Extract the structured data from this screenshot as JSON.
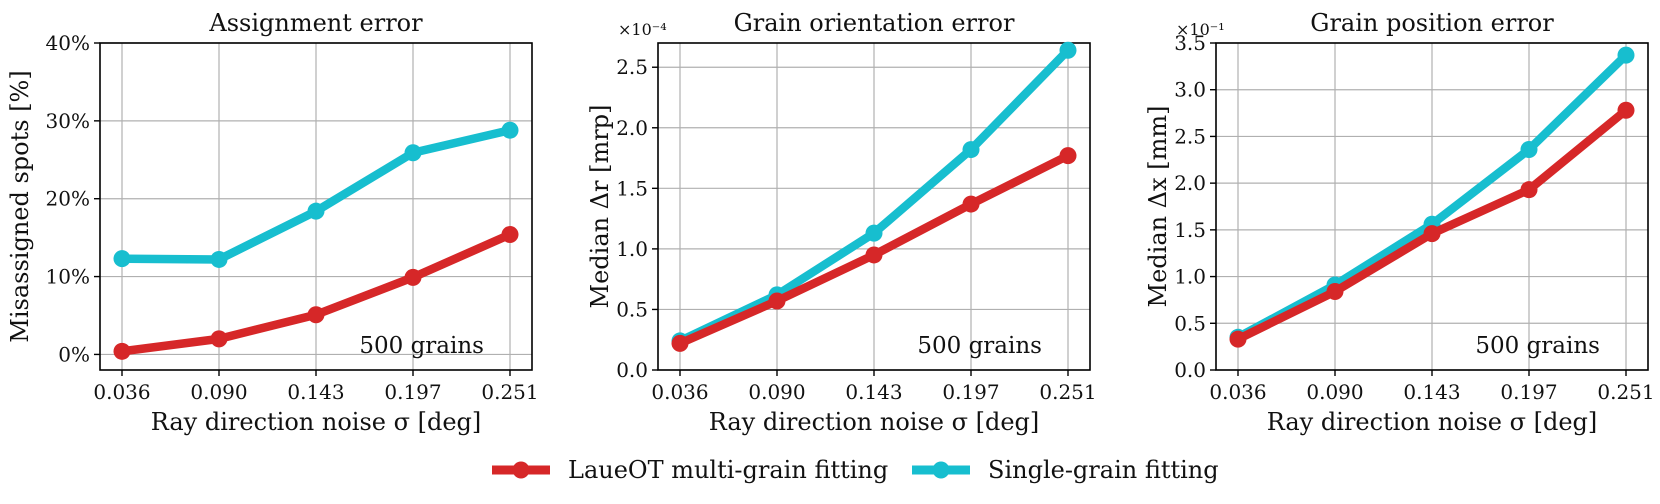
{
  "series_styles": [
    {
      "name": "LaueOT multi-grain fitting",
      "color": "#d62728"
    },
    {
      "name": "Single-grain fitting",
      "color": "#17becf"
    }
  ],
  "legend": {
    "items": [
      "LaueOT multi-grain fitting",
      "Single-grain fitting"
    ],
    "placement": "bottom-center"
  },
  "chart_data": [
    {
      "type": "line",
      "title": "Assignment error",
      "xlabel": "Ray direction noise σ [deg]",
      "ylabel": "Misassigned spots [%]",
      "x": [
        0.036,
        0.09,
        0.143,
        0.197,
        0.251
      ],
      "x_tick_labels": [
        "0.036",
        "0.090",
        "0.143",
        "0.197",
        "0.251"
      ],
      "ylim": [
        -2,
        40
      ],
      "y_ticks": [
        0,
        10,
        20,
        30,
        40
      ],
      "y_tick_labels": [
        "0%",
        "10%",
        "20%",
        "30%",
        "40%"
      ],
      "offset_text": "",
      "annotation": "500 grains",
      "grid": true,
      "series": [
        {
          "name": "LaueOT multi-grain fitting",
          "values": [
            0.4,
            2.0,
            5.1,
            9.9,
            15.4
          ]
        },
        {
          "name": "Single-grain fitting",
          "values": [
            12.3,
            12.2,
            18.4,
            25.9,
            28.8
          ]
        }
      ]
    },
    {
      "type": "line",
      "title": "Grain orientation error",
      "xlabel": "Ray direction noise σ [deg]",
      "ylabel": "Median Δr [mrp]",
      "x": [
        0.036,
        0.09,
        0.143,
        0.197,
        0.251
      ],
      "x_tick_labels": [
        "0.036",
        "0.090",
        "0.143",
        "0.197",
        "0.251"
      ],
      "ylim": [
        0,
        2.7
      ],
      "y_ticks": [
        0,
        0.5,
        1.0,
        1.5,
        2.0,
        2.5
      ],
      "y_tick_labels": [
        "0.0",
        "0.5",
        "1.0",
        "1.5",
        "2.0",
        "2.5"
      ],
      "offset_text": "×10⁻⁴",
      "annotation": "500 grains",
      "grid": true,
      "series": [
        {
          "name": "LaueOT multi-grain fitting",
          "values": [
            0.22,
            0.57,
            0.95,
            1.37,
            1.77
          ]
        },
        {
          "name": "Single-grain fitting",
          "values": [
            0.24,
            0.62,
            1.13,
            1.82,
            2.64
          ]
        }
      ]
    },
    {
      "type": "line",
      "title": "Grain position error",
      "xlabel": "Ray direction noise σ [deg]",
      "ylabel": "Median Δx [mm]",
      "x": [
        0.036,
        0.09,
        0.143,
        0.197,
        0.251
      ],
      "x_tick_labels": [
        "0.036",
        "0.090",
        "0.143",
        "0.197",
        "0.251"
      ],
      "ylim": [
        0,
        3.5
      ],
      "y_ticks": [
        0,
        0.5,
        1.0,
        1.5,
        2.0,
        2.5,
        3.0,
        3.5
      ],
      "y_tick_labels": [
        "0.0",
        "0.5",
        "1.0",
        "1.5",
        "2.0",
        "2.5",
        "3.0",
        "3.5"
      ],
      "offset_text": "×10⁻¹",
      "annotation": "500 grains",
      "grid": true,
      "series": [
        {
          "name": "LaueOT multi-grain fitting",
          "values": [
            0.33,
            0.84,
            1.46,
            1.93,
            2.78
          ]
        },
        {
          "name": "Single-grain fitting",
          "values": [
            0.35,
            0.91,
            1.56,
            2.36,
            3.37
          ]
        }
      ]
    }
  ]
}
